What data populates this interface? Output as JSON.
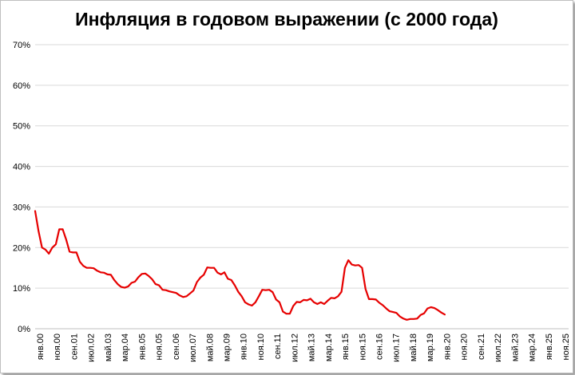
{
  "chart_data": {
    "type": "line",
    "title": "Инфляция в годовом выражении (с 2000 года)",
    "xlabel": "",
    "ylabel": "",
    "ylim": [
      0,
      70
    ],
    "yticks": [
      0,
      10,
      20,
      30,
      40,
      50,
      60,
      70
    ],
    "ytick_labels": [
      "0%",
      "10%",
      "20%",
      "30%",
      "40%",
      "50%",
      "60%",
      "70%"
    ],
    "grid": true,
    "legend": "none",
    "line_color": "#e60000",
    "x_range": [
      "2000-01",
      "2025-11"
    ],
    "x_tick_labels": [
      "янв.00",
      "ноя.00",
      "сен.01",
      "июл.02",
      "май.03",
      "мар.04",
      "янв.05",
      "ноя.05",
      "сен.06",
      "июл.07",
      "май.08",
      "мар.09",
      "янв.10",
      "ноя.10",
      "сен.11",
      "июл.12",
      "май.13",
      "мар.14",
      "янв.15",
      "ноя.15",
      "сен.16",
      "июл.17",
      "май.18",
      "мар.19",
      "янв.20",
      "ноя.20",
      "сен.21",
      "июл.22",
      "май.23",
      "мар.24",
      "янв.25",
      "ноя.25"
    ],
    "series": [
      {
        "x": [
          "2000-01",
          "2000-03",
          "2000-05",
          "2000-07",
          "2000-09",
          "2000-11",
          "2001-01",
          "2001-03",
          "2001-05",
          "2001-07",
          "2001-09",
          "2001-11",
          "2002-01",
          "2002-03",
          "2002-05",
          "2002-07",
          "2002-09",
          "2002-11",
          "2003-01",
          "2003-03",
          "2003-05",
          "2003-07",
          "2003-09",
          "2003-11",
          "2004-01",
          "2004-03",
          "2004-05",
          "2004-07",
          "2004-09",
          "2004-11",
          "2005-01",
          "2005-03",
          "2005-05",
          "2005-07",
          "2005-09",
          "2005-11",
          "2006-01",
          "2006-03",
          "2006-05",
          "2006-07",
          "2006-09",
          "2006-11",
          "2007-01",
          "2007-03",
          "2007-05",
          "2007-07",
          "2007-09",
          "2007-11",
          "2008-01",
          "2008-03",
          "2008-05",
          "2008-07",
          "2008-09",
          "2008-11",
          "2009-01",
          "2009-03",
          "2009-05",
          "2009-07",
          "2009-09",
          "2009-11",
          "2010-01",
          "2010-03",
          "2010-05",
          "2010-07",
          "2010-09",
          "2010-11",
          "2011-01",
          "2011-03",
          "2011-05",
          "2011-07",
          "2011-09",
          "2011-11",
          "2012-01",
          "2012-03",
          "2012-05",
          "2012-07",
          "2012-09",
          "2012-11",
          "2013-01",
          "2013-03",
          "2013-05",
          "2013-07",
          "2013-09",
          "2013-11",
          "2014-01",
          "2014-03",
          "2014-05",
          "2014-07",
          "2014-09",
          "2014-11",
          "2015-01",
          "2015-03",
          "2015-05",
          "2015-07",
          "2015-09",
          "2015-11",
          "2016-01",
          "2016-03",
          "2016-05",
          "2016-07",
          "2016-09",
          "2016-11",
          "2017-01",
          "2017-03",
          "2017-05",
          "2017-07",
          "2017-09",
          "2017-11",
          "2018-01",
          "2018-03",
          "2018-05",
          "2018-07",
          "2018-09",
          "2018-11",
          "2019-01",
          "2019-03",
          "2019-05",
          "2019-07",
          "2019-09",
          "2019-11"
        ],
        "values": [
          29.0,
          24.0,
          20.0,
          19.5,
          18.5,
          20.0,
          20.8,
          24.5,
          24.5,
          22.0,
          19.0,
          18.8,
          18.8,
          16.5,
          15.5,
          15.0,
          15.0,
          14.9,
          14.3,
          13.9,
          13.8,
          13.4,
          13.3,
          12.0,
          11.0,
          10.3,
          10.1,
          10.4,
          11.3,
          11.6,
          12.7,
          13.5,
          13.6,
          13.0,
          12.2,
          11.0,
          10.7,
          9.6,
          9.5,
          9.2,
          9.0,
          8.8,
          8.2,
          7.8,
          8.0,
          8.7,
          9.4,
          11.5,
          12.6,
          13.3,
          15.1,
          15.0,
          15.0,
          13.8,
          13.4,
          13.9,
          12.3,
          12.0,
          10.7,
          9.1,
          8.0,
          6.5,
          6.0,
          5.7,
          6.5,
          8.0,
          9.6,
          9.5,
          9.6,
          9.0,
          7.2,
          6.5,
          4.2,
          3.7,
          3.7,
          5.6,
          6.6,
          6.5,
          7.1,
          7.0,
          7.4,
          6.5,
          6.1,
          6.5,
          6.1,
          6.9,
          7.6,
          7.5,
          8.0,
          9.1,
          15.0,
          16.9,
          15.8,
          15.6,
          15.7,
          15.0,
          9.8,
          7.3,
          7.3,
          7.2,
          6.4,
          5.8,
          5.0,
          4.3,
          4.1,
          3.9,
          3.0,
          2.5,
          2.2,
          2.4,
          2.4,
          2.5,
          3.4,
          3.8,
          5.0,
          5.3,
          5.1,
          4.6,
          4.0,
          3.5
        ]
      }
    ]
  }
}
